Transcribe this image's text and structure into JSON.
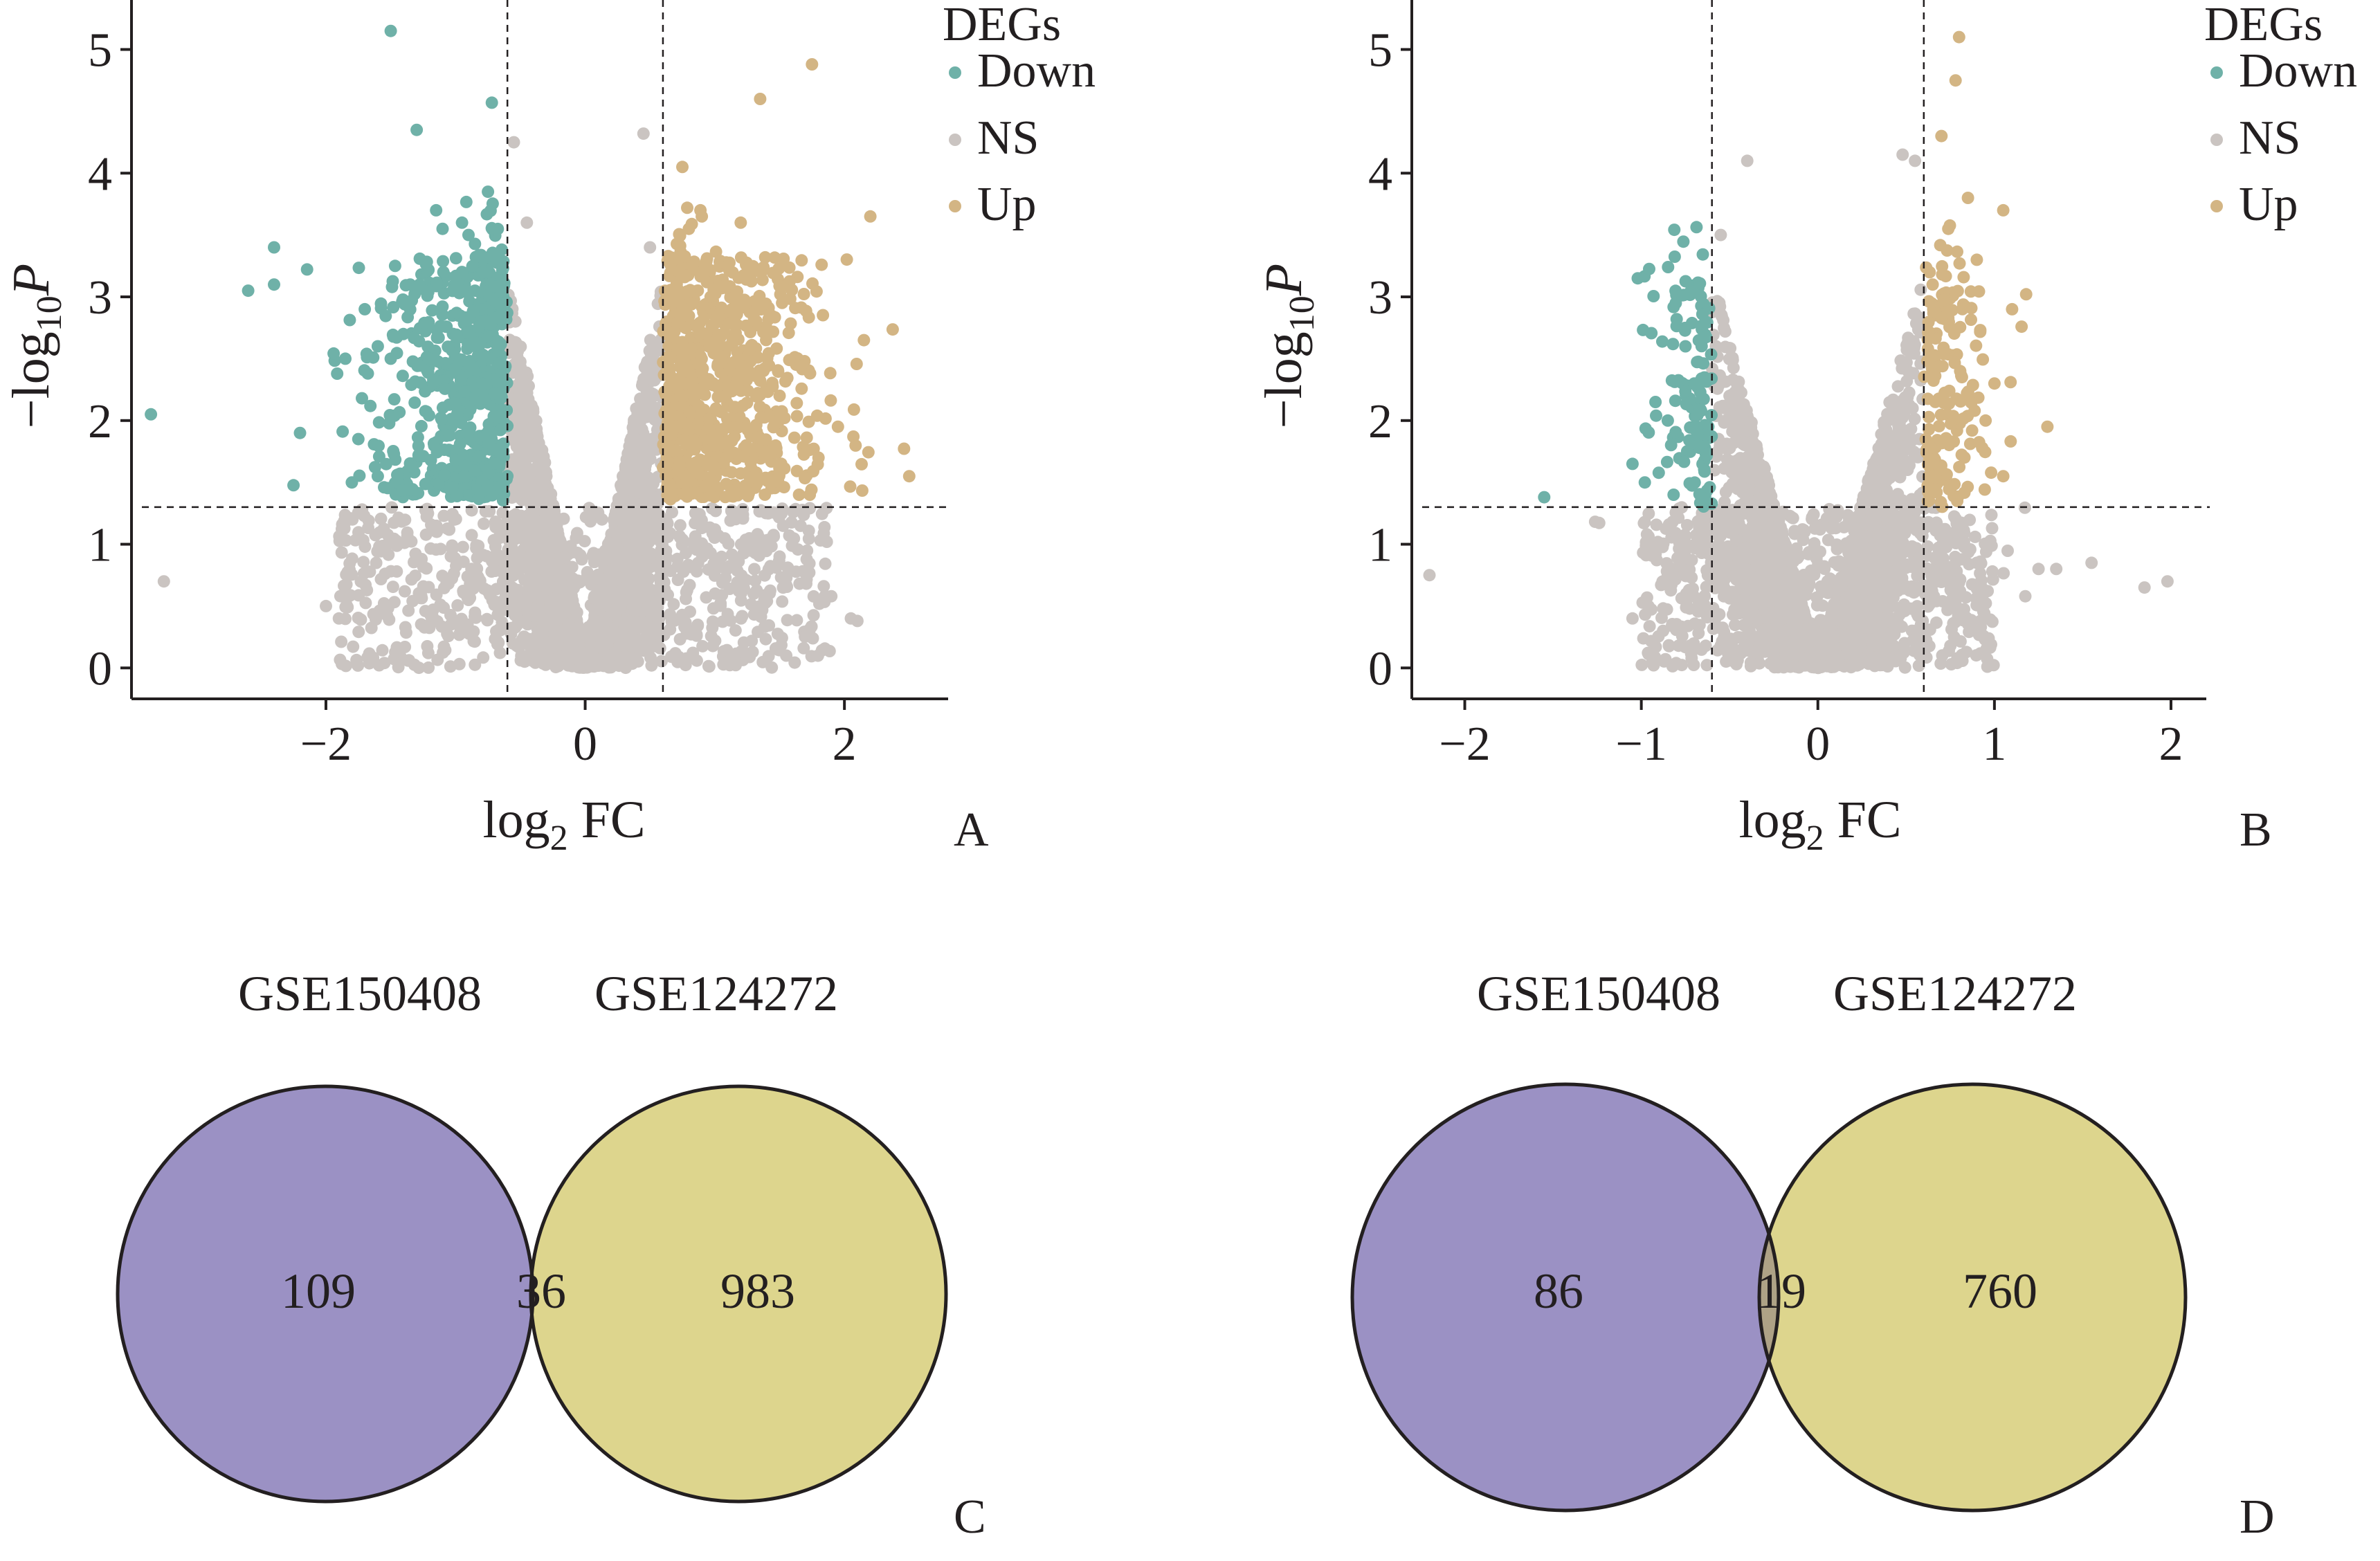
{
  "chart_data": [
    {
      "panel": "A",
      "type": "scatter",
      "subtype": "volcano",
      "xlabel": {
        "main": "log",
        "sub": "2",
        "tail": " FC"
      },
      "ylabel": {
        "lead": "−log",
        "sub": "10",
        "italic": "P"
      },
      "xlim": [
        -3.5,
        2.8
      ],
      "ylim": [
        -0.25,
        5.4
      ],
      "xticks": [
        -2,
        0,
        2
      ],
      "xtick_labels": [
        "−2",
        "0",
        "2"
      ],
      "yticks": [
        0,
        1,
        2,
        3,
        4,
        5
      ],
      "ytick_labels": [
        "0",
        "1",
        "2",
        "3",
        "4",
        "5"
      ],
      "thresholds": {
        "log2fc": [
          -0.6,
          0.6
        ],
        "neg_log10_p": 1.3
      },
      "legend": {
        "title": "DEGs",
        "position": "top-right",
        "entries": [
          "Down",
          "NS",
          "Up"
        ]
      },
      "colors": {
        "Down": "#6fb1a8",
        "NS": "#cac4c1",
        "Up": "#d3b584"
      },
      "cloud": {
        "ns_points": 3000,
        "down_points": 550,
        "up_points": 750,
        "side_x_max": 2.0,
        "side_y_max": 3.6
      },
      "series": [
        {
          "name": "Down",
          "points": [
            [
              -1.5,
              5.15
            ],
            [
              -0.72,
              4.57
            ],
            [
              -1.3,
              4.35
            ],
            [
              -2.4,
              3.4
            ],
            [
              -2.6,
              3.05
            ],
            [
              -2.4,
              3.1
            ],
            [
              -1.85,
              2.5
            ],
            [
              -3.35,
              2.05
            ],
            [
              -2.2,
              1.9
            ],
            [
              -1.75,
              1.85
            ],
            [
              -1.6,
              1.55
            ],
            [
              -1.8,
              1.5
            ],
            [
              -0.75,
              3.85
            ],
            [
              -0.95,
              3.6
            ],
            [
              -1.1,
              3.55
            ],
            [
              -1.15,
              3.7
            ],
            [
              -0.9,
              3.5
            ],
            [
              -0.85,
              3.05
            ],
            [
              -1.35,
              3.1
            ],
            [
              -1.7,
              2.9
            ],
            [
              -1.6,
              2.6
            ],
            [
              -1.5,
              2.5
            ]
          ]
        },
        {
          "name": "NS",
          "points": [
            [
              -3.25,
              0.7
            ],
            [
              -0.55,
              4.25
            ],
            [
              0.45,
              4.32
            ],
            [
              -0.45,
              3.6
            ],
            [
              0.5,
              3.4
            ],
            [
              2.05,
              0.4
            ],
            [
              2.1,
              0.38
            ],
            [
              1.3,
              0.6
            ],
            [
              1.5,
              0.9
            ],
            [
              -1.9,
              0.4
            ],
            [
              -2.0,
              0.5
            ],
            [
              -0.9,
              0.55
            ]
          ]
        },
        {
          "name": "Up",
          "points": [
            [
              1.75,
              4.88
            ],
            [
              1.35,
              4.6
            ],
            [
              0.75,
              4.05
            ],
            [
              2.2,
              3.65
            ],
            [
              1.2,
              3.6
            ],
            [
              0.9,
              3.65
            ],
            [
              0.8,
              3.55
            ],
            [
              2.15,
              2.65
            ],
            [
              1.95,
              1.95
            ],
            [
              2.5,
              1.55
            ],
            [
              1.8,
              1.7
            ],
            [
              1.5,
              2.2
            ],
            [
              1.65,
              1.4
            ]
          ]
        }
      ]
    },
    {
      "panel": "B",
      "type": "scatter",
      "subtype": "volcano",
      "xlabel": {
        "main": "log",
        "sub": "2",
        "tail": " FC"
      },
      "ylabel": {
        "lead": "−log",
        "sub": "10",
        "italic": "P"
      },
      "xlim": [
        -2.3,
        2.2
      ],
      "ylim": [
        -0.25,
        5.4
      ],
      "xticks": [
        -2,
        -1,
        0,
        1,
        2
      ],
      "xtick_labels": [
        "−2",
        "−1",
        "0",
        "1",
        "2"
      ],
      "yticks": [
        0,
        1,
        2,
        3,
        4,
        5
      ],
      "ytick_labels": [
        "0",
        "1",
        "2",
        "3",
        "4",
        "5"
      ],
      "thresholds": {
        "log2fc": [
          -0.6,
          0.6
        ],
        "neg_log10_p": 1.3
      },
      "legend": {
        "title": "DEGs",
        "position": "top-right",
        "entries": [
          "Down",
          "NS",
          "Up"
        ]
      },
      "colors": {
        "Down": "#6fb1a8",
        "NS": "#cac4c1",
        "Up": "#d3b584"
      },
      "cloud": {
        "ns_points": 2600,
        "down_points": 45,
        "up_points": 90,
        "side_x_max": 1.15,
        "side_y_max": 3.4
      },
      "series": [
        {
          "name": "Down",
          "points": [
            [
              -1.02,
              3.15
            ],
            [
              -0.8,
              2.82
            ],
            [
              -0.75,
              2.6
            ],
            [
              -0.92,
              2.15
            ],
            [
              -1.05,
              1.65
            ],
            [
              -0.98,
              1.5
            ],
            [
              -1.55,
              1.38
            ],
            [
              -0.85,
              2.0
            ],
            [
              -0.7,
              2.3
            ]
          ]
        },
        {
          "name": "NS",
          "points": [
            [
              -2.2,
              0.75
            ],
            [
              -1.05,
              0.4
            ],
            [
              -0.55,
              3.5
            ],
            [
              -0.4,
              4.1
            ],
            [
              0.55,
              4.1
            ],
            [
              0.48,
              4.15
            ],
            [
              1.55,
              0.85
            ],
            [
              1.85,
              0.65
            ],
            [
              1.98,
              0.7
            ],
            [
              1.25,
              0.8
            ],
            [
              1.35,
              0.8
            ],
            [
              0.9,
              0.85
            ]
          ]
        },
        {
          "name": "Up",
          "points": [
            [
              0.8,
              5.1
            ],
            [
              0.78,
              4.75
            ],
            [
              0.7,
              4.3
            ],
            [
              0.85,
              3.8
            ],
            [
              1.05,
              3.7
            ],
            [
              0.9,
              3.3
            ],
            [
              1.1,
              2.9
            ],
            [
              1.3,
              1.95
            ],
            [
              1.0,
              2.3
            ],
            [
              1.05,
              1.55
            ],
            [
              0.95,
              2.0
            ],
            [
              0.65,
              3.1
            ]
          ]
        }
      ]
    },
    {
      "panel": "C",
      "type": "venn",
      "sets": [
        "GSE150408",
        "GSE124272"
      ],
      "values": {
        "left_only": 109,
        "intersection": 36,
        "right_only": 983
      },
      "colors": {
        "left": "#9b91c4",
        "right": "#ddd58d",
        "overlap": "#aea286"
      }
    },
    {
      "panel": "D",
      "type": "venn",
      "sets": [
        "GSE150408",
        "GSE124272"
      ],
      "values": {
        "left_only": 86,
        "intersection": 19,
        "right_only": 760
      },
      "colors": {
        "left": "#9b91c4",
        "right": "#ddd58d",
        "overlap": "#aea286"
      }
    }
  ]
}
